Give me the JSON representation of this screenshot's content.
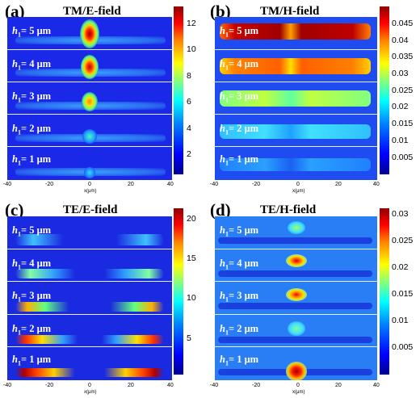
{
  "colors": {
    "background": "#1a28e8",
    "separator": "#e8eefc"
  },
  "panels": {
    "a": {
      "label": "(a)",
      "title": "TM/E-field",
      "colorbar_ticks": [
        "12",
        "10",
        "8",
        "6",
        "4",
        "2"
      ],
      "x_ticks": [
        "-40",
        "-20",
        "0",
        "20",
        "40"
      ],
      "x_label": "x(μm)"
    },
    "b": {
      "label": "(b)",
      "title": "TM/H-field",
      "colorbar_ticks": [
        "0.045",
        "0.04",
        "0.035",
        "0.03",
        "0.025",
        "0.02",
        "0.015",
        "0.01",
        "0.005"
      ],
      "x_ticks": [
        "-40",
        "-20",
        "0",
        "20",
        "40"
      ],
      "x_label": "x(μm)"
    },
    "c": {
      "label": "(c)",
      "title": "TE/E-field",
      "colorbar_ticks": [
        "20",
        "15",
        "10",
        "5"
      ],
      "x_ticks": [
        "-40",
        "-20",
        "0",
        "20",
        "40"
      ],
      "x_label": "x(μm)"
    },
    "d": {
      "label": "(d)",
      "title": "TE/H-field",
      "colorbar_ticks": [
        "0.03",
        "0.025",
        "0.02",
        "0.015",
        "0.01",
        "0.005"
      ],
      "x_ticks": [
        "-40",
        "-20",
        "0",
        "20",
        "40"
      ],
      "x_label": "x(μm)"
    }
  },
  "h_labels": {
    "prefix": "h",
    "index": "1",
    "values": [
      "= 5 μm",
      "= 4 μm",
      "= 3 μm",
      "= 2 μm",
      "= 1 μm"
    ]
  }
}
